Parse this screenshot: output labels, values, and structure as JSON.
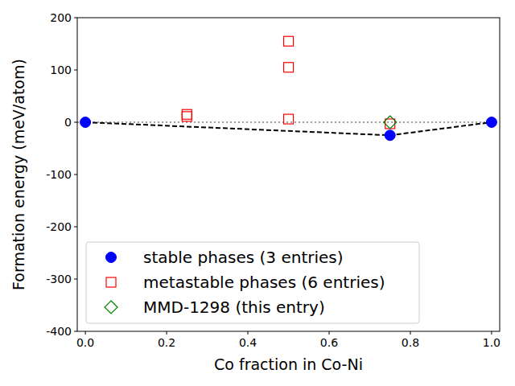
{
  "chart_data": {
    "type": "scatter",
    "x_label": "Co fraction in Co-Ni",
    "y_label": "Formation energy (meV/atom)",
    "xlim": [
      -0.02,
      1.02
    ],
    "ylim": [
      -400,
      200
    ],
    "xticks": [
      {
        "value": 0,
        "label": "0.0"
      },
      0.2,
      0.4,
      0.6,
      0.8,
      {
        "value": 1,
        "label": "1.0"
      }
    ],
    "yticks": [
      -400,
      -300,
      -200,
      -100,
      0,
      100,
      200
    ],
    "grid": false,
    "legend": "lower left",
    "series": [
      {
        "type": "line",
        "line_style": "dotted",
        "color": "#808080",
        "x": [
          -0.02,
          1.02
        ],
        "values": [
          0,
          0
        ]
      },
      {
        "type": "line",
        "line_style": "dashed",
        "color": "#000000",
        "x": [
          0,
          0.75,
          1
        ],
        "values": [
          0,
          -25,
          0
        ]
      },
      {
        "name": "stable phases (3 entries)",
        "type": "scatter",
        "marker": "circle",
        "color": "#0000ff",
        "x": [
          0,
          0.75,
          1
        ],
        "values": [
          0,
          -25,
          0
        ]
      },
      {
        "name": "metastable phases (6 entries)",
        "type": "scatter",
        "marker": "square",
        "color": "#ff0000",
        "x": [
          0.25,
          0.25,
          0.5,
          0.5,
          0.5,
          0.75
        ],
        "values": [
          15,
          11,
          155,
          105,
          6,
          -3
        ]
      },
      {
        "name": "MMD-1298 (this entry)",
        "type": "scatter",
        "marker": "diamond",
        "color": "#008000",
        "x": [
          0.75
        ],
        "values": [
          0
        ]
      }
    ]
  }
}
